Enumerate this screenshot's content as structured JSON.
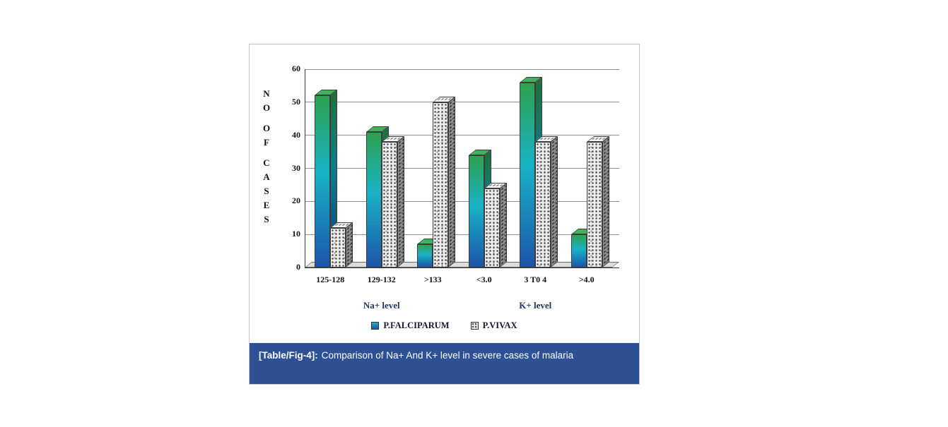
{
  "panel": {
    "caption_label": "[Table/Fig-4]:",
    "caption_text": "Comparison of Na+ And K+ level in severe cases of malaria"
  },
  "chart_data": {
    "type": "bar",
    "categories": [
      "125-128",
      "129-132",
      ">133",
      "<3.0",
      "3 T0 4",
      ">4.0"
    ],
    "series": [
      {
        "name": "P.FALCIPARUM",
        "values": [
          52,
          41,
          7,
          34,
          56,
          10
        ]
      },
      {
        "name": "P.VIVAX",
        "values": [
          12,
          38,
          50,
          24,
          38,
          38
        ]
      }
    ],
    "group_labels": [
      {
        "label": "Na+ level",
        "span": [
          0,
          2
        ]
      },
      {
        "label": "K+ level",
        "span": [
          3,
          5
        ]
      }
    ],
    "ylabel": "NO OF CASES",
    "xlabel": "",
    "title": "",
    "ylim": [
      0,
      60
    ],
    "yticks": [
      0,
      10,
      20,
      30,
      40,
      50,
      60
    ],
    "grid": true,
    "legend_position": "bottom",
    "colors": {
      "falciparum_gradient": [
        "#2fa24f",
        "#18b2c6",
        "#1c55a9"
      ],
      "vivax_fill": "#ededed pattern",
      "grid": "#8f8f8f",
      "axis": "#3a3a3a",
      "group_label": "#1f3566",
      "banner": "#2e5094"
    }
  }
}
